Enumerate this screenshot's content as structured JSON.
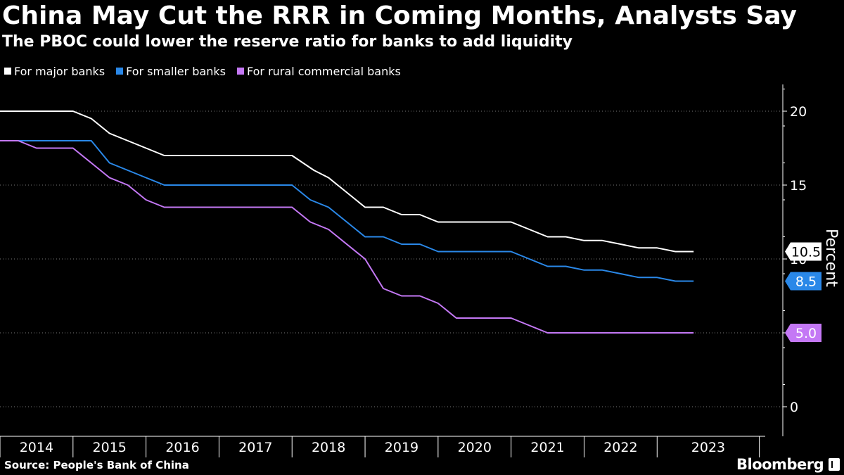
{
  "header": {
    "title": "China May Cut the RRR in Coming Months, Analysts Say",
    "subtitle": "The PBOC could lower the reserve ratio for banks to add liquidity"
  },
  "footer": {
    "source": "Source: People's Bank of China",
    "brand": "Bloomberg"
  },
  "colors": {
    "background": "#000000",
    "major": "#ffffff",
    "smaller": "#2a88e8",
    "rural": "#c478f5",
    "grid": "#777777"
  },
  "chart_data": {
    "type": "line",
    "title": "China May Cut the RRR in Coming Months, Analysts Say",
    "subtitle": "The PBOC could lower the reserve ratio for banks to add liquidity",
    "xlabel": "",
    "ylabel": "Percent",
    "ylim": [
      -1,
      22
    ],
    "xlim": [
      2013.5,
      2024.0
    ],
    "y_ticks": [
      0,
      5,
      10,
      15,
      20
    ],
    "y_tick_labels": [
      "0",
      "5",
      "10",
      "15",
      "20"
    ],
    "x_categories": [
      "2014",
      "2015",
      "2016",
      "2017",
      "2018",
      "2019",
      "2020",
      "2021",
      "2022",
      "2023"
    ],
    "x_category_starts": [
      2013.5,
      2014.5,
      2015.5,
      2016.5,
      2017.5,
      2018.5,
      2019.5,
      2020.5,
      2021.5,
      2022.5
    ],
    "grid": true,
    "legend_position": "top-left",
    "series": [
      {
        "name": "For major banks",
        "color": "#ffffff",
        "last_label": "10.5",
        "points": [
          [
            2013.5,
            20
          ],
          [
            2014.5,
            20
          ],
          [
            2014.75,
            19.5
          ],
          [
            2015.0,
            18.5
          ],
          [
            2015.25,
            18
          ],
          [
            2015.5,
            17.5
          ],
          [
            2015.75,
            17
          ],
          [
            2017.5,
            17
          ],
          [
            2017.8,
            16
          ],
          [
            2018.0,
            15.5
          ],
          [
            2018.25,
            14.5
          ],
          [
            2018.5,
            13.5
          ],
          [
            2018.75,
            13.5
          ],
          [
            2019.0,
            13
          ],
          [
            2019.25,
            13
          ],
          [
            2019.5,
            12.5
          ],
          [
            2020.5,
            12.5
          ],
          [
            2020.75,
            12
          ],
          [
            2021.0,
            11.5
          ],
          [
            2021.25,
            11.5
          ],
          [
            2021.5,
            11.25
          ],
          [
            2021.75,
            11.25
          ],
          [
            2022.0,
            11
          ],
          [
            2022.25,
            10.75
          ],
          [
            2022.5,
            10.75
          ],
          [
            2022.75,
            10.5
          ],
          [
            2023.0,
            10.5
          ]
        ]
      },
      {
        "name": "For smaller banks",
        "color": "#2a88e8",
        "last_label": "8.5",
        "points": [
          [
            2013.5,
            18
          ],
          [
            2014.75,
            18
          ],
          [
            2015.0,
            16.5
          ],
          [
            2015.25,
            16
          ],
          [
            2015.5,
            15.5
          ],
          [
            2015.75,
            15
          ],
          [
            2017.5,
            15
          ],
          [
            2017.75,
            14
          ],
          [
            2018.0,
            13.5
          ],
          [
            2018.25,
            12.5
          ],
          [
            2018.5,
            11.5
          ],
          [
            2018.75,
            11.5
          ],
          [
            2019.0,
            11
          ],
          [
            2019.25,
            11
          ],
          [
            2019.5,
            10.5
          ],
          [
            2020.5,
            10.5
          ],
          [
            2020.75,
            10
          ],
          [
            2021.0,
            9.5
          ],
          [
            2021.25,
            9.5
          ],
          [
            2021.5,
            9.25
          ],
          [
            2021.75,
            9.25
          ],
          [
            2022.0,
            9
          ],
          [
            2022.25,
            8.75
          ],
          [
            2022.5,
            8.75
          ],
          [
            2022.75,
            8.5
          ],
          [
            2023.0,
            8.5
          ]
        ]
      },
      {
        "name": "For rural commercial banks",
        "color": "#c478f5",
        "last_label": "5.0",
        "points": [
          [
            2013.5,
            18
          ],
          [
            2013.75,
            18
          ],
          [
            2014.0,
            17.5
          ],
          [
            2014.5,
            17.5
          ],
          [
            2015.0,
            15.5
          ],
          [
            2015.25,
            15
          ],
          [
            2015.5,
            14
          ],
          [
            2015.75,
            13.5
          ],
          [
            2017.5,
            13.5
          ],
          [
            2017.75,
            12.5
          ],
          [
            2018.0,
            12
          ],
          [
            2018.5,
            10
          ],
          [
            2018.75,
            8
          ],
          [
            2019.0,
            7.5
          ],
          [
            2019.25,
            7.5
          ],
          [
            2019.5,
            7
          ],
          [
            2019.75,
            6
          ],
          [
            2020.5,
            6
          ],
          [
            2020.75,
            5.5
          ],
          [
            2021.0,
            5
          ],
          [
            2023.0,
            5
          ]
        ]
      }
    ]
  }
}
